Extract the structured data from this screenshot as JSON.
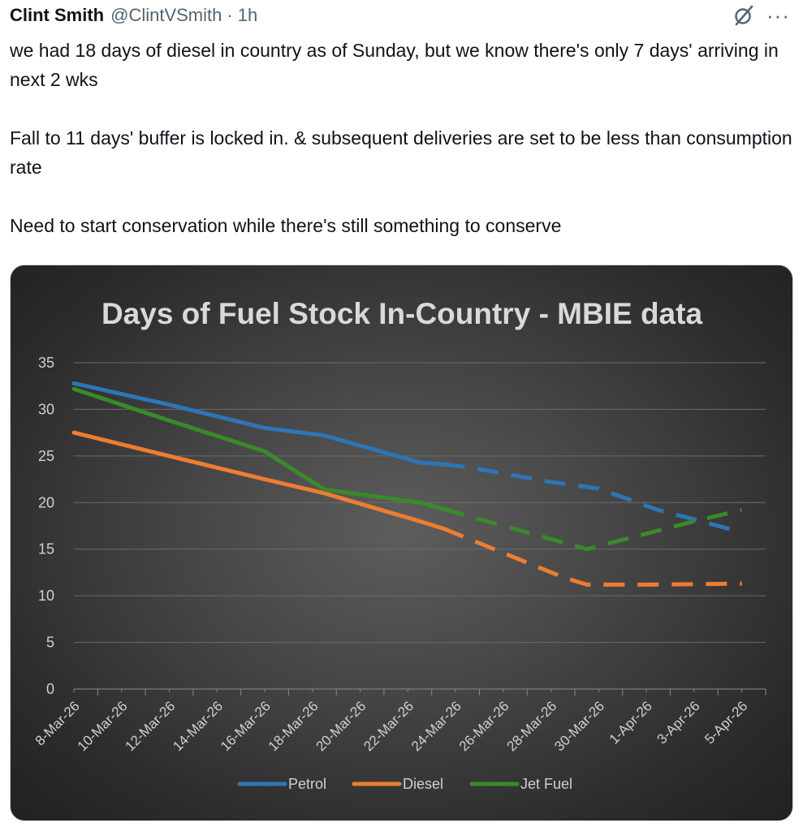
{
  "tweet": {
    "author_name": "Clint Smith",
    "author_handle": "@ClintVSmith",
    "separator": "·",
    "time": "1h",
    "icons": {
      "grok": "grok-slash-circle-icon",
      "more": "more-horizontal-icon"
    },
    "more_label": "···",
    "text_paragraphs": [
      "we had 18 days of diesel in country as of Sunday, but we know there's only 7 days' arriving in next 2 wks",
      "Fall to 11 days' buffer is locked in. & subsequent deliveries are set to be less than consumption rate",
      "Need to start conservation while there's still something to conserve"
    ]
  },
  "chart_data": {
    "type": "line",
    "title": "Days of Fuel Stock In-Country - MBIE data",
    "xlabel": "",
    "ylabel": "",
    "ylim": [
      0,
      35
    ],
    "yticks": [
      0,
      5,
      10,
      15,
      20,
      25,
      30,
      35
    ],
    "grid": true,
    "legend_position": "bottom",
    "x_day_range": [
      0,
      29
    ],
    "x_ticks": [
      {
        "day": 0,
        "label": "8-Mar-26"
      },
      {
        "day": 2,
        "label": "10-Mar-26"
      },
      {
        "day": 4,
        "label": "12-Mar-26"
      },
      {
        "day": 6,
        "label": "14-Mar-26"
      },
      {
        "day": 8,
        "label": "16-Mar-26"
      },
      {
        "day": 10,
        "label": "18-Mar-26"
      },
      {
        "day": 12,
        "label": "20-Mar-26"
      },
      {
        "day": 14,
        "label": "22-Mar-26"
      },
      {
        "day": 16,
        "label": "24-Mar-26"
      },
      {
        "day": 18,
        "label": "26-Mar-26"
      },
      {
        "day": 20,
        "label": "28-Mar-26"
      },
      {
        "day": 22,
        "label": "30-Mar-26"
      },
      {
        "day": 24,
        "label": "1-Apr-26"
      },
      {
        "day": 26,
        "label": "3-Apr-26"
      },
      {
        "day": 28,
        "label": "5-Apr-26"
      }
    ],
    "series": [
      {
        "name": "Petrol",
        "color": "#2e75b6",
        "actual": [
          [
            0,
            32.8
          ],
          [
            4,
            30.5
          ],
          [
            8,
            28.0
          ],
          [
            10.5,
            27.2
          ],
          [
            14.5,
            24.3
          ],
          [
            15.5,
            24.1
          ]
        ],
        "projected": [
          [
            15.5,
            24.1
          ],
          [
            16.5,
            23.8
          ],
          [
            20,
            22.2
          ],
          [
            22,
            21.5
          ],
          [
            24.5,
            19.2
          ],
          [
            26,
            18.2
          ],
          [
            28,
            16.8
          ]
        ]
      },
      {
        "name": "Diesel",
        "color": "#ed7d31",
        "actual": [
          [
            0,
            27.5
          ],
          [
            4,
            25.0
          ],
          [
            8,
            22.5
          ],
          [
            10.5,
            21.0
          ],
          [
            14.5,
            18.0
          ],
          [
            15.5,
            17.2
          ]
        ],
        "projected": [
          [
            15.5,
            17.2
          ],
          [
            20.5,
            12.0
          ],
          [
            21.5,
            11.2
          ],
          [
            24,
            11.2
          ],
          [
            28,
            11.3
          ]
        ]
      },
      {
        "name": "Jet Fuel",
        "color": "#3a8a2a",
        "actual": [
          [
            0,
            32.2
          ],
          [
            4,
            28.8
          ],
          [
            8,
            25.5
          ],
          [
            10.5,
            21.4
          ],
          [
            14.5,
            20.0
          ],
          [
            15.5,
            19.3
          ]
        ],
        "projected": [
          [
            15.5,
            19.3
          ],
          [
            21.5,
            15.0
          ],
          [
            26,
            18.0
          ],
          [
            28,
            19.2
          ]
        ]
      }
    ]
  }
}
